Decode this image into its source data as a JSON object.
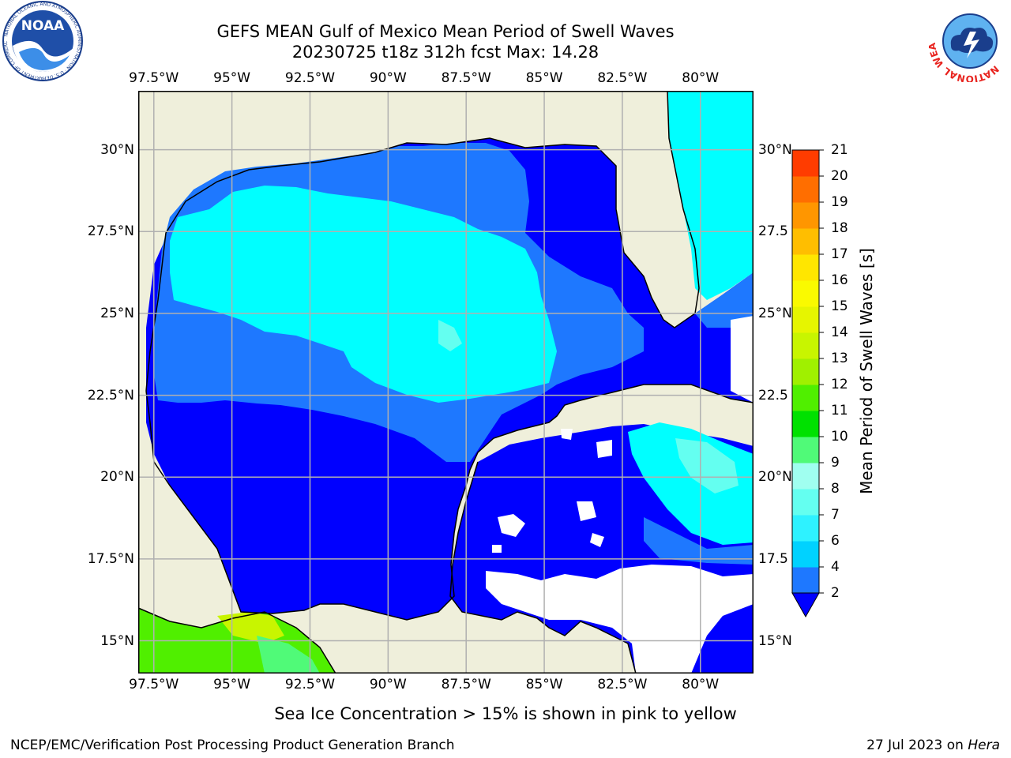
{
  "header": {
    "title_line1": "GEFS MEAN Gulf of Mexico Mean Period of Swell Waves",
    "title_line2": "20230725 t18z 312h fcst   Max: 14.28"
  },
  "logos": {
    "left": {
      "icon": "noaa-logo-icon",
      "text": "NOAA",
      "ring_text": "NATIONAL OCEANIC AND ATMOSPHERIC ADMINISTRATION · U.S. DEPARTMENT OF COMMERCE"
    },
    "right": {
      "icon": "nws-logo-icon",
      "ring_text": "NATIONAL WEATHER SERVICE"
    }
  },
  "map": {
    "lon_ticks_top": [
      "97.5°W",
      "95°W",
      "92.5°W",
      "90°W",
      "87.5°W",
      "85°W",
      "82.5°W",
      "80°W"
    ],
    "lon_ticks_bottom": [
      "97.5°W",
      "95°W",
      "92.5°W",
      "90°W",
      "87.5°W",
      "85°W",
      "82.5°W",
      "80°W"
    ],
    "lat_ticks_left": [
      "30°N",
      "27.5°N",
      "25°N",
      "22.5°N",
      "20°N",
      "17.5°N",
      "15°N"
    ],
    "lat_ticks_right": [
      "30°N",
      "27.5",
      "25°N",
      "22.5",
      "20°N",
      "17.5",
      "15°N"
    ],
    "lon_values": [
      -97.5,
      -95,
      -92.5,
      -90,
      -87.5,
      -85,
      -82.5,
      -80
    ],
    "lat_values": [
      30,
      27.5,
      25,
      22.5,
      20,
      17.5,
      15
    ],
    "extent": {
      "lon_min": -98,
      "lon_max": -78.3,
      "lat_min": 14,
      "lat_max": 31.8
    },
    "land_color": "#efefdb",
    "gridline_color": "#b0b0b0"
  },
  "colorbar": {
    "title": "Mean Period of Swell Waves [s]",
    "labels": [
      "2",
      "4",
      "6",
      "7",
      "8",
      "9",
      "10",
      "11",
      "12",
      "13",
      "14",
      "15",
      "16",
      "17",
      "18",
      "19",
      "20",
      "21"
    ],
    "colors": [
      "#1e78ff",
      "#00d2ff",
      "#2ef2ff",
      "#64fff0",
      "#a0fff0",
      "#50fa78",
      "#00e100",
      "#50ef00",
      "#a0f000",
      "#c8f500",
      "#e6f500",
      "#fafa00",
      "#ffe600",
      "#ffbe00",
      "#ff9600",
      "#ff6e00",
      "#ff3c00",
      "#ff0000"
    ],
    "under_color": "#0000ff"
  },
  "footnote": "Sea Ice Concentration > 15% is shown in pink to yellow",
  "credits": {
    "left": "NCEP/EMC/Verification Post Processing Product Generation Branch",
    "right_prefix": "27 Jul 2023 on ",
    "right_machine": "Hera"
  }
}
